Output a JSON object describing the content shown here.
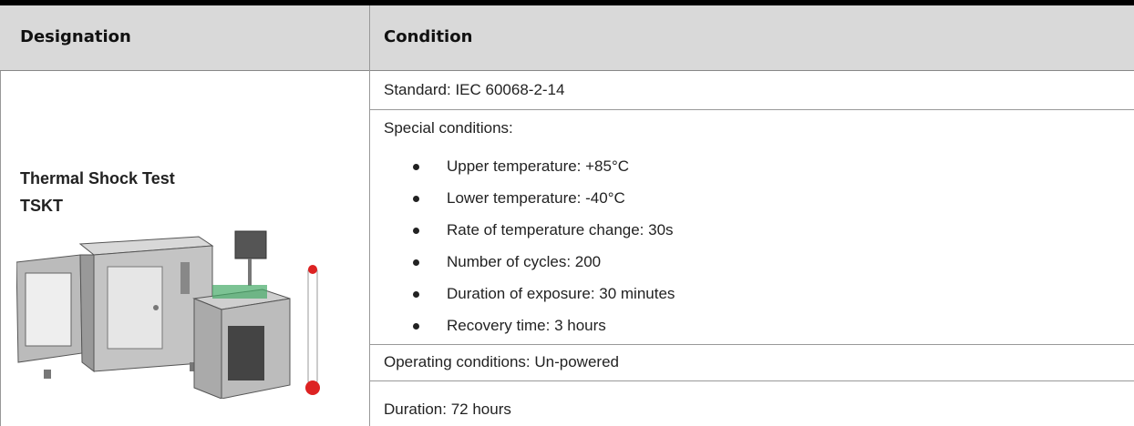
{
  "header": {
    "columns": [
      "Designation",
      "Condition"
    ]
  },
  "designation": {
    "lines": [
      "Thermal Shock Test",
      "TSKT"
    ]
  },
  "conditions": {
    "standard": "Standard: IEC 60068-2-14",
    "special_title": "Special conditions:",
    "special_items": [
      "Upper temperature: +85°C",
      "Lower temperature: -40°C",
      "Rate of temperature change: 30s",
      "Number of cycles: 200",
      "Duration of exposure: 30 minutes",
      "Recovery time: 3 hours"
    ],
    "operating": "Operating conditions: Un-powered",
    "duration": "Duration: 72 hours"
  }
}
